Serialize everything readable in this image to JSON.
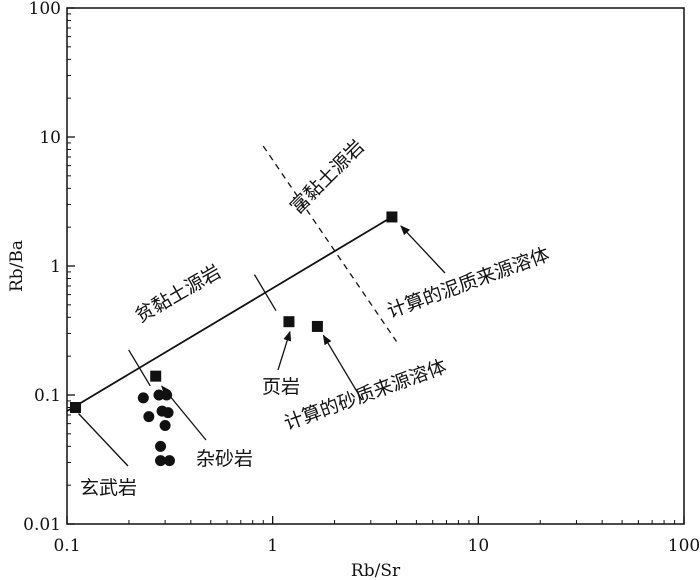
{
  "chart_data": {
    "type": "scatter",
    "x_scale": "log",
    "y_scale": "log",
    "xlim": [
      0.1,
      100
    ],
    "ylim": [
      0.01,
      100
    ],
    "xlabel": "Rb/Sr",
    "ylabel": "Rb/Ba",
    "x_ticks": [
      "0.1",
      "1",
      "10",
      "100"
    ],
    "y_ticks": [
      "0.01",
      "0.1",
      "1",
      "10",
      "100"
    ],
    "grid": false,
    "series": [
      {
        "marker": "square",
        "points": [
          {
            "x": 0.11,
            "y": 0.08
          },
          {
            "x": 0.27,
            "y": 0.14
          },
          {
            "x": 1.2,
            "y": 0.37
          },
          {
            "x": 1.65,
            "y": 0.34
          },
          {
            "x": 3.8,
            "y": 2.4
          }
        ]
      },
      {
        "marker": "circle",
        "points": [
          {
            "x": 0.235,
            "y": 0.095
          },
          {
            "x": 0.28,
            "y": 0.1
          },
          {
            "x": 0.305,
            "y": 0.1
          },
          {
            "x": 0.25,
            "y": 0.068
          },
          {
            "x": 0.29,
            "y": 0.075
          },
          {
            "x": 0.31,
            "y": 0.073
          },
          {
            "x": 0.3,
            "y": 0.058
          },
          {
            "x": 0.285,
            "y": 0.04
          },
          {
            "x": 0.285,
            "y": 0.031
          },
          {
            "x": 0.315,
            "y": 0.031
          }
        ]
      }
    ],
    "lines": [
      {
        "style": "solid",
        "from": {
          "x": 0.1,
          "y": 0.075
        },
        "to": {
          "x": 3.8,
          "y": 2.4
        }
      },
      {
        "style": "dashed",
        "from": {
          "x": 0.9,
          "y": 8.5
        },
        "to": {
          "x": 4.0,
          "y": 0.26
        }
      }
    ],
    "annotations": [
      {
        "text": "富黏土源岩"
      },
      {
        "text": "贫黏土源岩"
      },
      {
        "text": "计算的泥质来源溶体"
      },
      {
        "text": "页岩"
      },
      {
        "text": "计算的砂质来源溶体"
      },
      {
        "text": "杂砂岩"
      },
      {
        "text": "玄武岩"
      }
    ]
  }
}
